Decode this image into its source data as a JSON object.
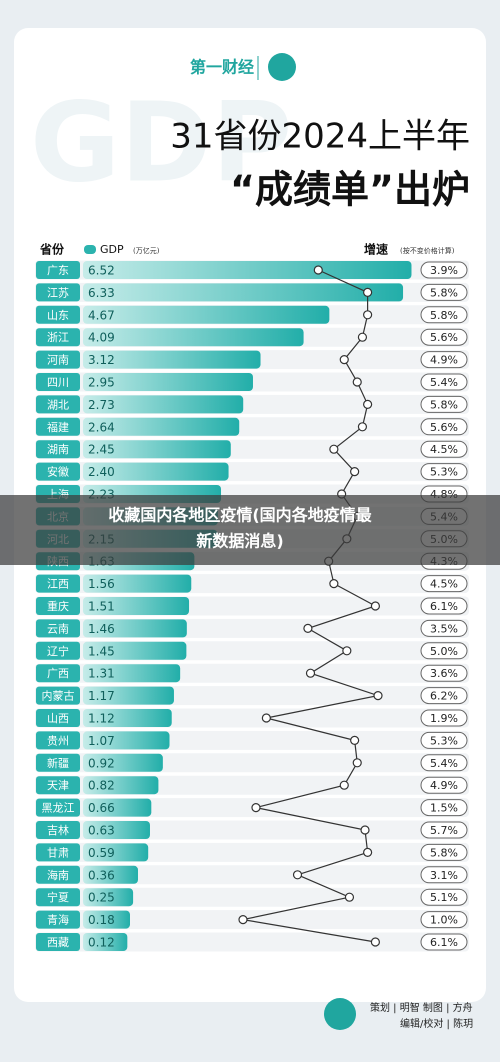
{
  "brand": "第一财经",
  "chart_data": {
    "type": "bar",
    "title": "31省份2024上半年",
    "subtitle": "“成绩单”出炉",
    "category_label": "省份",
    "categories": [
      "广东",
      "江苏",
      "山东",
      "浙江",
      "河南",
      "四川",
      "湖北",
      "福建",
      "湖南",
      "安徽",
      "上海",
      "北京",
      "河北",
      "陕西",
      "江西",
      "重庆",
      "云南",
      "辽宁",
      "广西",
      "内蒙古",
      "山西",
      "贵州",
      "新疆",
      "天津",
      "黑龙江",
      "吉林",
      "甘肃",
      "海南",
      "宁夏",
      "青海",
      "西藏"
    ],
    "series": [
      {
        "name": "GDP",
        "unit": "(万亿元)",
        "color": "#2bb3ae",
        "values": [
          6.52,
          6.33,
          4.67,
          4.09,
          3.12,
          2.95,
          2.73,
          2.64,
          2.45,
          2.4,
          2.23,
          2.16,
          2.15,
          1.63,
          1.56,
          1.51,
          1.46,
          1.45,
          1.31,
          1.17,
          1.12,
          1.07,
          0.92,
          0.82,
          0.66,
          0.63,
          0.59,
          0.36,
          0.25,
          0.18,
          0.12
        ],
        "value_labels": [
          "6.52",
          "6.33",
          "4.67",
          "4.09",
          "3.12",
          "2.95",
          "2.73",
          "2.64",
          "2.45",
          "2.40",
          "2.23",
          null,
          "2.15",
          "1.63",
          "1.56",
          "1.51",
          "1.46",
          "1.45",
          "1.31",
          "1.17",
          "1.12",
          "1.07",
          "0.92",
          "0.82",
          "0.66",
          "0.63",
          "0.59",
          "0.36",
          "0.25",
          "0.18",
          "0.12"
        ]
      },
      {
        "name": "增速",
        "unit": "(按不变价格计算)",
        "type": "line",
        "color": "#333333",
        "values": [
          3.9,
          5.8,
          5.8,
          5.6,
          4.9,
          5.4,
          5.8,
          5.6,
          4.5,
          5.3,
          4.8,
          5.4,
          5.0,
          4.3,
          4.5,
          6.1,
          3.5,
          5.0,
          3.6,
          6.2,
          1.9,
          5.3,
          5.4,
          4.9,
          1.5,
          5.7,
          5.8,
          3.1,
          5.1,
          1.0,
          6.1
        ],
        "value_labels": [
          "3.9%",
          "5.8%",
          "5.8%",
          "5.6%",
          "4.9%",
          "5.4%",
          "5.8%",
          "5.6%",
          "4.5%",
          "5.3%",
          "4.8%",
          "5.4%",
          "5.0%",
          "4.3%",
          "4.5%",
          "6.1%",
          "3.5%",
          "5.0%",
          "3.6%",
          "6.2%",
          "1.9%",
          "5.3%",
          "5.4%",
          "4.9%",
          "1.5%",
          "5.7%",
          "5.8%",
          "3.1%",
          "5.1%",
          "1.0%",
          "6.1%"
        ]
      }
    ]
  },
  "footer": {
    "credits": [
      "策划 | 明智  制图 | 方舟",
      "编辑/校对 | 陈玥"
    ]
  },
  "overlay": {
    "lines": [
      "收藏国内各地区疫情(国内各地疫情最",
      "新数据消息)"
    ]
  }
}
